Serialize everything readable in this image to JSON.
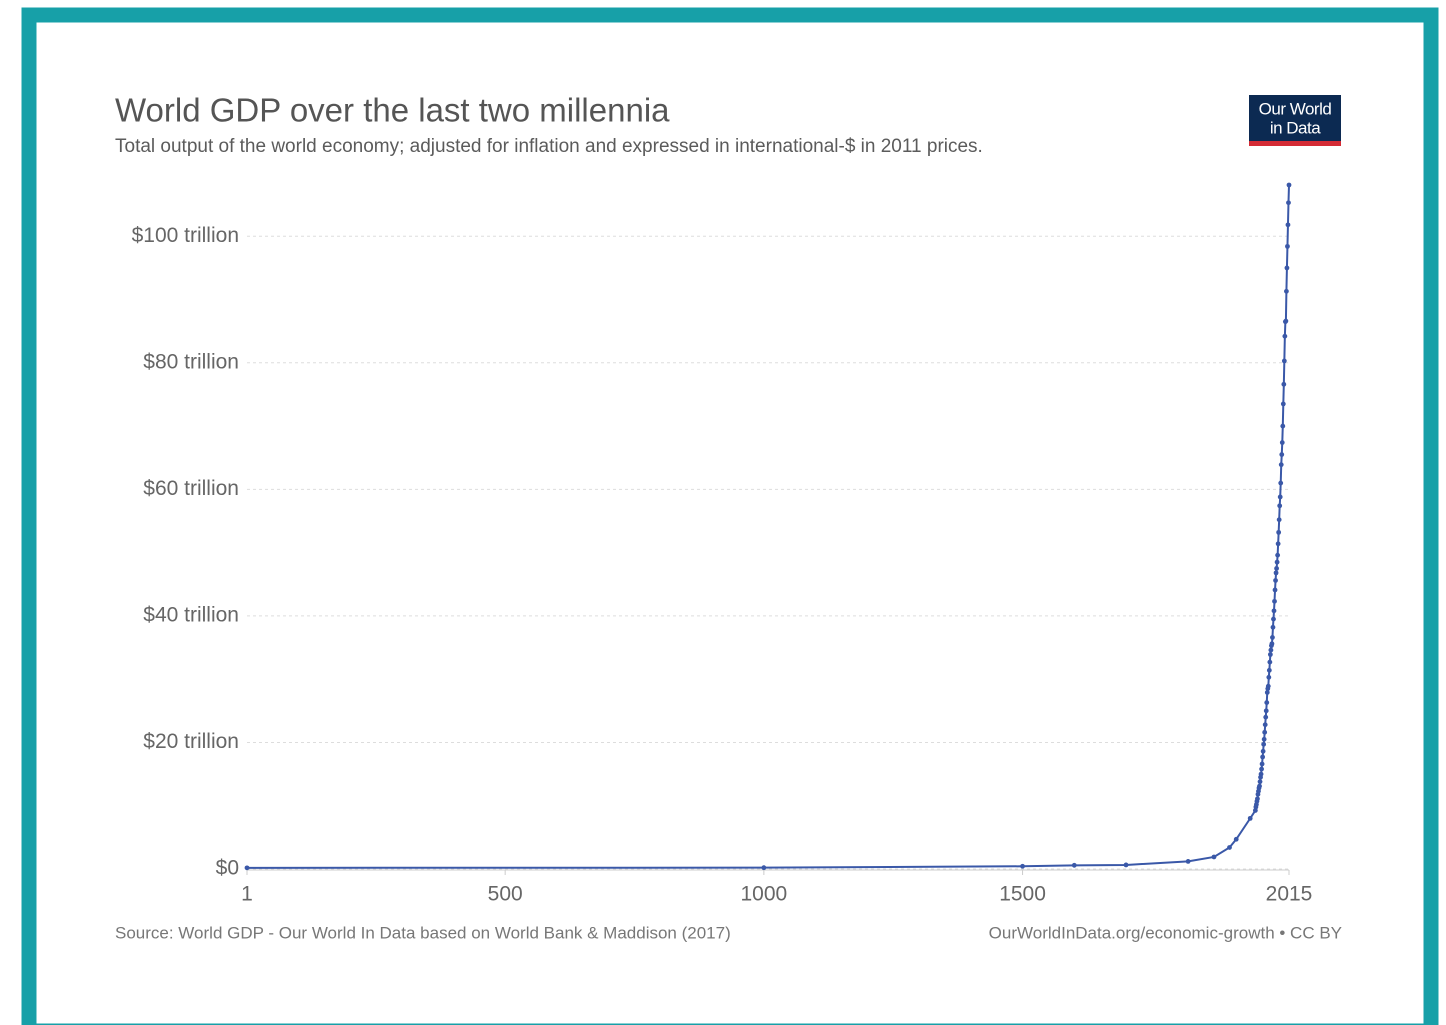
{
  "logo": [
    "Our World",
    "in Data"
  ],
  "chart_data": {
    "type": "line",
    "title": "World GDP over the last two millennia",
    "subtitle": "Total output of the world economy; adjusted for inflation and expressed in international-$ in 2011 prices.",
    "source": "Source: World GDP - Our World In Data based on World Bank & Maddison (2017)",
    "note": "OurWorldInData.org/economic-growth • CC BY",
    "color": "#3a58a8",
    "grid": true,
    "xlim": [
      1,
      2015
    ],
    "xticks": [
      1,
      500,
      1000,
      1500,
      2015
    ],
    "ylim": [
      0,
      108.1
    ],
    "yticks": [
      {
        "value": 0,
        "label": "$0"
      },
      {
        "value": 20,
        "label": "$20 trillion"
      },
      {
        "value": 40,
        "label": "$40 trillion"
      },
      {
        "value": 60,
        "label": "$60 trillion"
      },
      {
        "value": 80,
        "label": "$80 trillion"
      },
      {
        "value": 100,
        "label": "$100 trillion"
      }
    ],
    "x": [
      1,
      1000,
      1500,
      1600,
      1700,
      1820,
      1870,
      1900,
      1913,
      1940,
      1950,
      1951,
      1952,
      1953,
      1954,
      1955,
      1956,
      1957,
      1958,
      1959,
      1960,
      1961,
      1962,
      1963,
      1964,
      1965,
      1966,
      1967,
      1968,
      1969,
      1970,
      1971,
      1972,
      1973,
      1974,
      1975,
      1976,
      1977,
      1978,
      1979,
      1980,
      1981,
      1982,
      1983,
      1984,
      1985,
      1986,
      1987,
      1988,
      1989,
      1990,
      1991,
      1992,
      1993,
      1994,
      1995,
      1996,
      1997,
      1998,
      1999,
      2000,
      2001,
      2002,
      2003,
      2004,
      2005,
      2006,
      2007,
      2008,
      2009,
      2010,
      2011,
      2012,
      2013,
      2014,
      2015
    ],
    "values": [
      0.18,
      0.21,
      0.43,
      0.58,
      0.64,
      1.2,
      1.9,
      3.4,
      4.7,
      8.0,
      9.25,
      9.8,
      10.2,
      10.7,
      11.1,
      11.8,
      12.3,
      12.8,
      13.1,
      13.8,
      14.5,
      15.0,
      15.8,
      16.6,
      17.7,
      18.6,
      19.7,
      20.5,
      21.6,
      22.8,
      24.0,
      25.0,
      26.3,
      27.9,
      28.5,
      28.9,
      30.3,
      31.4,
      32.7,
      33.9,
      34.6,
      35.3,
      35.6,
      36.6,
      38.2,
      39.5,
      40.8,
      42.3,
      44.1,
      45.6,
      46.8,
      47.5,
      48.5,
      49.6,
      51.4,
      53.2,
      55.2,
      57.4,
      58.8,
      61.0,
      63.9,
      65.5,
      67.4,
      70.0,
      73.5,
      76.6,
      80.3,
      84.2,
      86.5,
      86.6,
      91.3,
      95.0,
      98.4,
      101.8,
      105.3,
      108.1
    ]
  }
}
